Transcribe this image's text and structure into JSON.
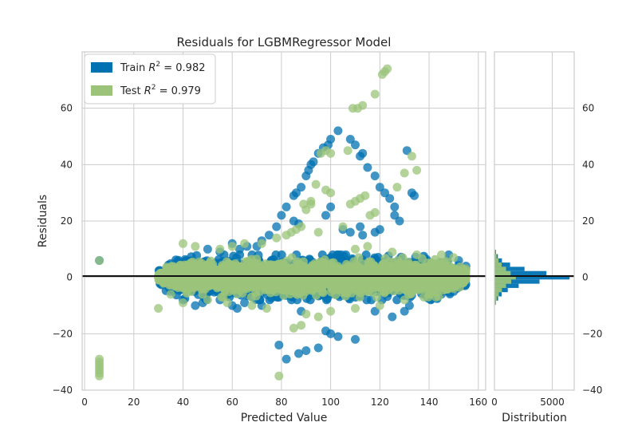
{
  "chart_data": [
    {
      "type": "scatter",
      "title": "Residuals for LGBMRegressor Model",
      "xlabel": "Predicted Value",
      "ylabel": "Residuals",
      "xlim": [
        -1,
        163
      ],
      "ylim": [
        -40,
        80
      ],
      "xticks": [
        0,
        20,
        40,
        60,
        80,
        100,
        120,
        140,
        160
      ],
      "yticks": [
        -40,
        -20,
        0,
        20,
        40,
        60
      ],
      "ytick_labels": [
        "−40",
        "−20",
        "0",
        "20",
        "40",
        "60"
      ],
      "grid": true,
      "reference_line_y": 0,
      "legend": {
        "placement": "top-left",
        "entries": [
          {
            "prefix": "Train ",
            "r2_label": "R",
            "sup": "2",
            "suffix": " = 0.982",
            "color": "#0072b2"
          },
          {
            "prefix": "Test ",
            "r2_label": "R",
            "sup": "2",
            "suffix": " = 0.979",
            "color": "#9bc47a"
          }
        ]
      },
      "series": [
        {
          "name": "Train",
          "color": "#0072b2",
          "core": {
            "x_range": [
              30,
              155
            ],
            "y_halfwidth": [
              8,
              5
            ]
          },
          "points": [
            [
              6,
              6
            ],
            [
              35,
              -5
            ],
            [
              40,
              -8
            ],
            [
              45,
              -10
            ],
            [
              48,
              -9
            ],
            [
              55,
              -8
            ],
            [
              60,
              -10
            ],
            [
              62,
              -11
            ],
            [
              65,
              -9
            ],
            [
              72,
              -10
            ],
            [
              79,
              -24
            ],
            [
              82,
              -29
            ],
            [
              87,
              -27
            ],
            [
              88,
              -12
            ],
            [
              90,
              -26
            ],
            [
              95,
              -25
            ],
            [
              98,
              -19
            ],
            [
              100,
              -20
            ],
            [
              103,
              -21
            ],
            [
              110,
              -22
            ],
            [
              118,
              -12
            ],
            [
              125,
              -14
            ],
            [
              130,
              -12
            ],
            [
              132,
              -10
            ],
            [
              140,
              -7
            ],
            [
              145,
              -6
            ],
            [
              150,
              -5
            ],
            [
              148,
              8
            ],
            [
              152,
              6
            ],
            [
              155,
              4
            ],
            [
              70,
              11
            ],
            [
              72,
              13
            ],
            [
              75,
              15
            ],
            [
              78,
              18
            ],
            [
              80,
              22
            ],
            [
              82,
              25
            ],
            [
              85,
              29
            ],
            [
              86,
              30
            ],
            [
              88,
              32
            ],
            [
              90,
              36
            ],
            [
              91,
              38
            ],
            [
              92,
              40
            ],
            [
              93,
              41
            ],
            [
              95,
              44
            ],
            [
              97,
              46
            ],
            [
              99,
              47
            ],
            [
              100,
              49
            ],
            [
              103,
              52
            ],
            [
              108,
              49
            ],
            [
              110,
              47
            ],
            [
              112,
              43
            ],
            [
              113,
              44
            ],
            [
              115,
              39
            ],
            [
              118,
              36
            ],
            [
              120,
              32
            ],
            [
              122,
              30
            ],
            [
              124,
              28
            ],
            [
              126,
              25
            ],
            [
              126,
              22
            ],
            [
              128,
              20
            ],
            [
              131,
              45
            ],
            [
              133,
              30
            ],
            [
              134,
              29
            ],
            [
              112,
              18
            ],
            [
              118,
              16
            ],
            [
              120,
              17
            ],
            [
              98,
              22
            ],
            [
              100,
              25
            ],
            [
              85,
              20
            ],
            [
              87,
              19
            ],
            [
              105,
              17
            ],
            [
              108,
              16
            ],
            [
              113,
              15
            ],
            [
              63,
              10
            ],
            [
              66,
              11
            ],
            [
              60,
              12
            ],
            [
              55,
              9
            ],
            [
              50,
              10
            ]
          ]
        },
        {
          "name": "Test",
          "color": "#9bc47a",
          "core": {
            "x_range": [
              30,
              155
            ],
            "y_halfwidth": [
              7,
              4
            ]
          },
          "points": [
            [
              6,
              6
            ],
            [
              6,
              -29
            ],
            [
              6,
              -30
            ],
            [
              6,
              -31
            ],
            [
              6,
              -32
            ],
            [
              6,
              -33
            ],
            [
              6,
              -34
            ],
            [
              6,
              -35
            ],
            [
              30,
              -11
            ],
            [
              35,
              -6
            ],
            [
              40,
              -9
            ],
            [
              50,
              -8
            ],
            [
              58,
              -9
            ],
            [
              68,
              -10
            ],
            [
              74,
              -11
            ],
            [
              79,
              -35
            ],
            [
              85,
              -18
            ],
            [
              88,
              -17
            ],
            [
              90,
              -13
            ],
            [
              95,
              -14
            ],
            [
              100,
              -12
            ],
            [
              110,
              -11
            ],
            [
              120,
              -10
            ],
            [
              130,
              -8
            ],
            [
              140,
              -6
            ],
            [
              150,
              -4
            ],
            [
              155,
              3
            ],
            [
              150,
              7
            ],
            [
              145,
              8
            ],
            [
              72,
              12
            ],
            [
              78,
              14
            ],
            [
              82,
              15
            ],
            [
              84,
              16
            ],
            [
              86,
              17
            ],
            [
              88,
              18
            ],
            [
              90,
              24
            ],
            [
              92,
              26
            ],
            [
              94,
              33
            ],
            [
              96,
              44
            ],
            [
              98,
              45
            ],
            [
              100,
              44
            ],
            [
              107,
              45
            ],
            [
              109,
              60
            ],
            [
              111,
              60
            ],
            [
              113,
              61
            ],
            [
              118,
              65
            ],
            [
              121,
              72
            ],
            [
              122,
              73
            ],
            [
              123,
              74
            ],
            [
              127,
              32
            ],
            [
              130,
              37
            ],
            [
              133,
              43
            ],
            [
              135,
              38
            ],
            [
              108,
              26
            ],
            [
              110,
              27
            ],
            [
              112,
              28
            ],
            [
              114,
              29
            ],
            [
              100,
              30
            ],
            [
              98,
              31
            ],
            [
              89,
              26
            ],
            [
              92,
              27
            ],
            [
              116,
              22
            ],
            [
              118,
              23
            ],
            [
              105,
              18
            ],
            [
              95,
              16
            ],
            [
              60,
              11
            ],
            [
              65,
              12
            ],
            [
              55,
              10
            ],
            [
              45,
              11
            ],
            [
              40,
              12
            ],
            [
              110,
              10
            ],
            [
              115,
              11
            ],
            [
              125,
              9
            ],
            [
              135,
              8
            ]
          ]
        }
      ]
    },
    {
      "type": "histogram",
      "xlabel": "Distribution",
      "xlim": [
        0,
        6900
      ],
      "ylim": [
        -40,
        80
      ],
      "xticks": [
        0,
        5000
      ],
      "yticks": [
        -40,
        -20,
        0,
        20,
        40,
        60
      ],
      "ytick_labels": [
        "−40",
        "−20",
        "0",
        "20",
        "40",
        "60"
      ],
      "orientation": "horizontal",
      "grid": true,
      "bin_width": 1.5,
      "series": [
        {
          "name": "Train",
          "color": "#0072b2",
          "bins": [
            [
              -9,
              120
            ],
            [
              -7.5,
              320
            ],
            [
              -6,
              620
            ],
            [
              -4.5,
              1150
            ],
            [
              -3,
              2100
            ],
            [
              -1.5,
              3900
            ],
            [
              0,
              6500
            ],
            [
              1.5,
              4500
            ],
            [
              3,
              2600
            ],
            [
              4.5,
              1350
            ],
            [
              6,
              650
            ],
            [
              7.5,
              300
            ],
            [
              9,
              130
            ]
          ]
        },
        {
          "name": "Test",
          "color": "#9bc47a",
          "bins": [
            [
              -9,
              80
            ],
            [
              -7.5,
              200
            ],
            [
              -6,
              380
            ],
            [
              -4.5,
              640
            ],
            [
              -3,
              1000
            ],
            [
              -1.5,
              1450
            ],
            [
              0,
              1850
            ],
            [
              1.5,
              1400
            ],
            [
              3,
              1000
            ],
            [
              4.5,
              620
            ],
            [
              6,
              350
            ],
            [
              7.5,
              190
            ],
            [
              9,
              80
            ]
          ]
        }
      ]
    }
  ]
}
